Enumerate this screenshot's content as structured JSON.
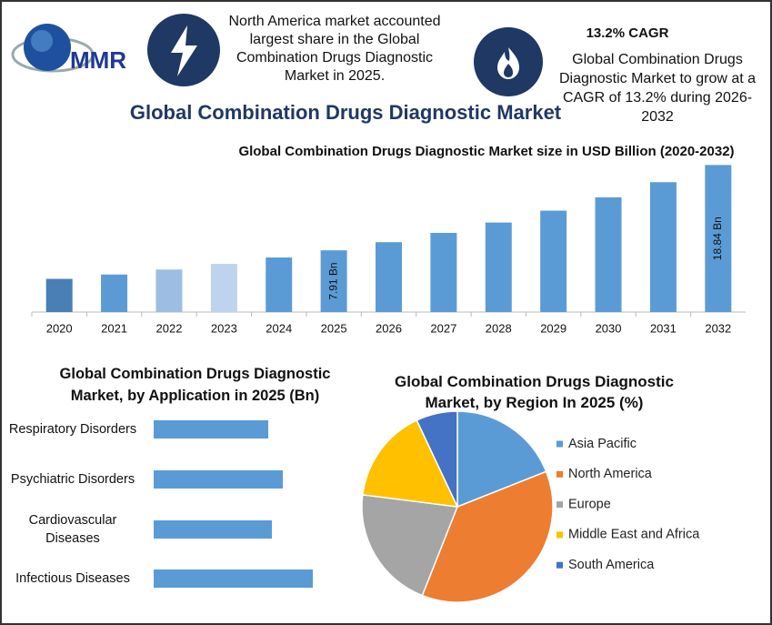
{
  "header": {
    "logo": "MMR",
    "highlight": "North America market accounted largest share in the Global Combination Drugs Diagnostic Market in 2025.",
    "cagr_title": "13.2% CAGR",
    "cagr_text": "Global Combination Drugs Diagnostic Market to grow at a CAGR of 13.2% during 2026-2032"
  },
  "title": "Global Combination Drugs Diagnostic Market",
  "chart_data": [
    {
      "type": "bar",
      "title": "Global Combination Drugs Diagnostic Market size in USD Billion (2020-2032)",
      "categories": [
        "2020",
        "2021",
        "2022",
        "2023",
        "2024",
        "2025",
        "2026",
        "2027",
        "2028",
        "2029",
        "2030",
        "2031",
        "2032"
      ],
      "values": [
        4.25,
        4.81,
        5.45,
        6.17,
        6.99,
        7.91,
        8.95,
        10.14,
        11.47,
        12.99,
        14.7,
        16.64,
        18.84
      ],
      "value_labels": [
        null,
        null,
        null,
        null,
        null,
        "7.91 Bn",
        null,
        null,
        null,
        null,
        null,
        null,
        "18.84 Bn"
      ],
      "colors": [
        "#4a7fb5",
        "#5b9bd5",
        "#9dbde3",
        "#bdd3ee",
        "#5b9bd5",
        "#5b9bd5",
        "#5b9bd5",
        "#5b9bd5",
        "#5b9bd5",
        "#5b9bd5",
        "#5b9bd5",
        "#5b9bd5",
        "#5b9bd5"
      ],
      "ylim": [
        0,
        19
      ]
    },
    {
      "type": "hbar",
      "title": "Global Combination Drugs Diagnostic Market, by Application in 2025 (Bn)",
      "categories": [
        "Respiratory Disorders",
        "Psychiatric Disorders",
        "Cardiovascular Diseases",
        "Infectious Diseases"
      ],
      "values": [
        2.52,
        2.84,
        2.6,
        3.5
      ],
      "color": "#5b9bd5",
      "xlim": [
        0,
        3.5
      ]
    },
    {
      "type": "pie",
      "title": "Global Combination Drugs Diagnostic Market, by Region In 2025 (%)",
      "categories": [
        "Asia Pacific",
        "North America",
        "Europe",
        "Middle East and Africa",
        "South America"
      ],
      "values": [
        19,
        37,
        21,
        16,
        7
      ],
      "colors": [
        "#5b9bd5",
        "#ed7d31",
        "#a5a5a5",
        "#ffc000",
        "#4472c4"
      ]
    }
  ]
}
